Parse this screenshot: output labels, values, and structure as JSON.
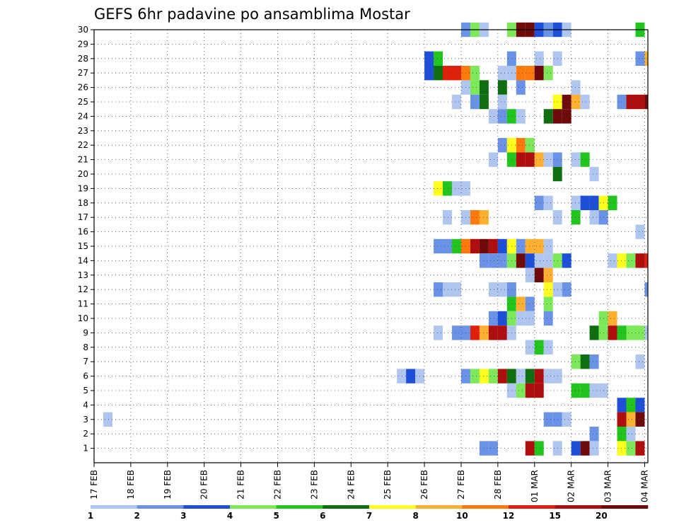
{
  "chart_data": {
    "type": "heatmap",
    "title": "GEFS 6hr padavine po ansamblima Mostar",
    "xlabel": "",
    "ylabel": "",
    "y_ticks": [
      "1",
      "2",
      "3",
      "4",
      "5",
      "6",
      "7",
      "8",
      "9",
      "10",
      "11",
      "12",
      "13",
      "14",
      "15",
      "16",
      "17",
      "18",
      "19",
      "20",
      "21",
      "22",
      "23",
      "24",
      "25",
      "26",
      "27",
      "28",
      "29",
      "30"
    ],
    "x_ticks": [
      "17 FEB",
      "18 FEB",
      "19 FEB",
      "20 FEB",
      "21 FEB",
      "22 FEB",
      "23 FEB",
      "24 FEB",
      "25 FEB",
      "26 FEB",
      "27 FEB",
      "28 FEB",
      "01 MAR",
      "02 MAR",
      "03 MAR",
      "04 MAR"
    ],
    "time_steps_per_day": 4,
    "member_range": [
      0,
      30
    ],
    "grid": true,
    "colorbar": {
      "labels": [
        "1",
        "2",
        "3",
        "4",
        "5",
        "6",
        "7",
        "8",
        "10",
        "12",
        "15",
        "20"
      ],
      "colors": [
        "#aec6f0",
        "#6a93e8",
        "#1e4fd8",
        "#7de85a",
        "#22c41e",
        "#0e6e10",
        "#ffff1e",
        "#ffb030",
        "#ff7a0a",
        "#e0200a",
        "#b00e0e",
        "#6e0a0a"
      ]
    },
    "cells": [
      {
        "m": 30,
        "c": [
          [
            40,
            2
          ],
          [
            41,
            4
          ],
          [
            42,
            1
          ],
          [
            45,
            4
          ],
          [
            46,
            12
          ],
          [
            47,
            12
          ],
          [
            48,
            3
          ],
          [
            49,
            2
          ],
          [
            50,
            3
          ],
          [
            51,
            1
          ],
          [
            59,
            5
          ]
        ]
      },
      {
        "m": 28,
        "c": [
          [
            36,
            3
          ],
          [
            37,
            5
          ],
          [
            45,
            2
          ],
          [
            48,
            1
          ],
          [
            50,
            1
          ],
          [
            59,
            2
          ],
          [
            60,
            8
          ]
        ]
      },
      {
        "m": 27,
        "c": [
          [
            36,
            3
          ],
          [
            37,
            6
          ],
          [
            38,
            10
          ],
          [
            39,
            10
          ],
          [
            40,
            9
          ],
          [
            41,
            4
          ],
          [
            44,
            1
          ],
          [
            45,
            1
          ],
          [
            46,
            9
          ],
          [
            47,
            9
          ],
          [
            48,
            12
          ],
          [
            49,
            4
          ]
        ]
      },
      {
        "m": 26,
        "c": [
          [
            40,
            1
          ],
          [
            41,
            4
          ],
          [
            42,
            6
          ],
          [
            44,
            6
          ],
          [
            46,
            2
          ],
          [
            52,
            1
          ]
        ]
      },
      {
        "m": 25,
        "c": [
          [
            39,
            1
          ],
          [
            41,
            2
          ],
          [
            42,
            6
          ],
          [
            44,
            1
          ],
          [
            50,
            7
          ],
          [
            51,
            12
          ],
          [
            52,
            8
          ],
          [
            53,
            1
          ],
          [
            57,
            2
          ],
          [
            58,
            11
          ],
          [
            59,
            11
          ],
          [
            60,
            12
          ]
        ]
      },
      {
        "m": 24,
        "c": [
          [
            43,
            1
          ],
          [
            44,
            2
          ],
          [
            45,
            5
          ],
          [
            46,
            1
          ],
          [
            49,
            6
          ],
          [
            50,
            12
          ],
          [
            51,
            12
          ]
        ]
      },
      {
        "m": 22,
        "c": [
          [
            44,
            2
          ],
          [
            45,
            7
          ],
          [
            46,
            9
          ],
          [
            47,
            4
          ]
        ]
      },
      {
        "m": 21,
        "c": [
          [
            43,
            1
          ],
          [
            45,
            5
          ],
          [
            46,
            11
          ],
          [
            47,
            11
          ],
          [
            48,
            8
          ],
          [
            49,
            1
          ],
          [
            50,
            2
          ],
          [
            52,
            1
          ],
          [
            53,
            5
          ]
        ]
      },
      {
        "m": 20,
        "c": [
          [
            50,
            6
          ],
          [
            54,
            1
          ]
        ]
      },
      {
        "m": 19,
        "c": [
          [
            37,
            7
          ],
          [
            38,
            5
          ],
          [
            39,
            1
          ],
          [
            40,
            1
          ]
        ]
      },
      {
        "m": 18,
        "c": [
          [
            48,
            2
          ],
          [
            49,
            1
          ],
          [
            52,
            1
          ],
          [
            53,
            3
          ],
          [
            54,
            3
          ],
          [
            55,
            7
          ],
          [
            56,
            5
          ]
        ]
      },
      {
        "m": 17,
        "c": [
          [
            38,
            1
          ],
          [
            40,
            1
          ],
          [
            41,
            9
          ],
          [
            42,
            8
          ],
          [
            50,
            1
          ],
          [
            52,
            5
          ],
          [
            54,
            1
          ],
          [
            55,
            2
          ]
        ]
      },
      {
        "m": 16,
        "c": [
          [
            59,
            1
          ]
        ]
      },
      {
        "m": 15,
        "c": [
          [
            37,
            2
          ],
          [
            38,
            2
          ],
          [
            39,
            5
          ],
          [
            40,
            9
          ],
          [
            41,
            11
          ],
          [
            42,
            12
          ],
          [
            43,
            11
          ],
          [
            44,
            3
          ],
          [
            45,
            7
          ],
          [
            46,
            2
          ],
          [
            47,
            8
          ],
          [
            48,
            8
          ],
          [
            49,
            1
          ]
        ]
      },
      {
        "m": 14,
        "c": [
          [
            42,
            2
          ],
          [
            43,
            2
          ],
          [
            44,
            2
          ],
          [
            45,
            4
          ],
          [
            46,
            12
          ],
          [
            47,
            3
          ],
          [
            48,
            1
          ],
          [
            49,
            1
          ],
          [
            50,
            4
          ],
          [
            51,
            3
          ],
          [
            56,
            1
          ],
          [
            57,
            7
          ],
          [
            58,
            4
          ],
          [
            59,
            11
          ],
          [
            60,
            10
          ]
        ]
      },
      {
        "m": 13,
        "c": [
          [
            47,
            1
          ],
          [
            48,
            12
          ],
          [
            49,
            8
          ]
        ]
      },
      {
        "m": 12,
        "c": [
          [
            37,
            2
          ],
          [
            38,
            1
          ],
          [
            39,
            1
          ],
          [
            43,
            1
          ],
          [
            44,
            1
          ],
          [
            45,
            2
          ],
          [
            49,
            7
          ],
          [
            50,
            1
          ],
          [
            51,
            2
          ],
          [
            60,
            2
          ]
        ]
      },
      {
        "m": 11,
        "c": [
          [
            45,
            5
          ],
          [
            46,
            8
          ],
          [
            47,
            2
          ],
          [
            49,
            4
          ]
        ]
      },
      {
        "m": 10,
        "c": [
          [
            43,
            2
          ],
          [
            44,
            3
          ],
          [
            45,
            4
          ],
          [
            46,
            1
          ],
          [
            47,
            1
          ],
          [
            49,
            2
          ],
          [
            55,
            4
          ],
          [
            56,
            8
          ]
        ]
      },
      {
        "m": 9,
        "c": [
          [
            37,
            1
          ],
          [
            39,
            2
          ],
          [
            40,
            2
          ],
          [
            41,
            10
          ],
          [
            42,
            8
          ],
          [
            43,
            11
          ],
          [
            44,
            11
          ],
          [
            45,
            1
          ],
          [
            54,
            6
          ],
          [
            55,
            4
          ],
          [
            56,
            11
          ],
          [
            57,
            5
          ],
          [
            58,
            4
          ],
          [
            59,
            4
          ],
          [
            60,
            1
          ]
        ]
      },
      {
        "m": 8,
        "c": [
          [
            47,
            1
          ],
          [
            48,
            5
          ],
          [
            49,
            1
          ]
        ]
      },
      {
        "m": 7,
        "c": [
          [
            52,
            4
          ],
          [
            53,
            6
          ],
          [
            54,
            2
          ],
          [
            59,
            1
          ]
        ]
      },
      {
        "m": 6,
        "c": [
          [
            33,
            1
          ],
          [
            34,
            3
          ],
          [
            35,
            1
          ],
          [
            40,
            2
          ],
          [
            41,
            4
          ],
          [
            42,
            7
          ],
          [
            43,
            4
          ],
          [
            44,
            11
          ],
          [
            45,
            6
          ],
          [
            46,
            1
          ],
          [
            47,
            6
          ],
          [
            48,
            11
          ],
          [
            49,
            1
          ],
          [
            50,
            1
          ]
        ]
      },
      {
        "m": 5,
        "c": [
          [
            45,
            1
          ],
          [
            46,
            4
          ],
          [
            47,
            11
          ],
          [
            48,
            11
          ],
          [
            52,
            5
          ],
          [
            53,
            5
          ],
          [
            54,
            1
          ],
          [
            55,
            1
          ]
        ]
      },
      {
        "m": 4,
        "c": [
          [
            57,
            3
          ],
          [
            58,
            5
          ],
          [
            59,
            3
          ]
        ]
      },
      {
        "m": 3,
        "c": [
          [
            1,
            1
          ],
          [
            49,
            2
          ],
          [
            50,
            2
          ],
          [
            51,
            1
          ],
          [
            57,
            11
          ],
          [
            58,
            8
          ],
          [
            59,
            12
          ]
        ]
      },
      {
        "m": 2,
        "c": [
          [
            54,
            2
          ],
          [
            57,
            5
          ],
          [
            58,
            1
          ]
        ]
      },
      {
        "m": 1,
        "c": [
          [
            42,
            2
          ],
          [
            43,
            2
          ],
          [
            47,
            11
          ],
          [
            48,
            5
          ],
          [
            50,
            1
          ],
          [
            52,
            3
          ],
          [
            53,
            12
          ],
          [
            54,
            1
          ],
          [
            57,
            7
          ],
          [
            58,
            4
          ],
          [
            59,
            11
          ]
        ]
      }
    ]
  }
}
